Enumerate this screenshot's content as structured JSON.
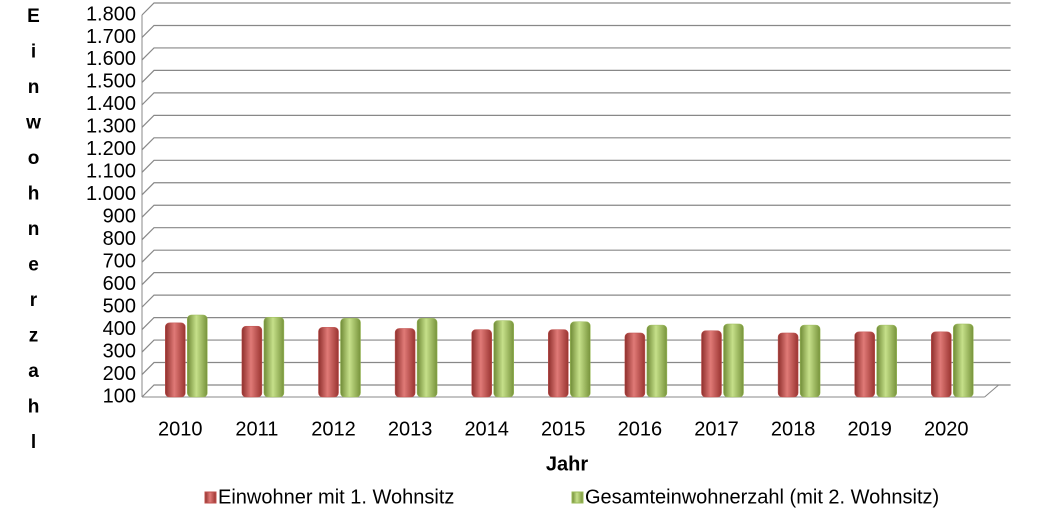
{
  "chart_data": {
    "type": "bar",
    "x_label": "Jahr",
    "y_label": "Einwohnerzahl",
    "categories": [
      "2010",
      "2011",
      "2012",
      "2013",
      "2014",
      "2015",
      "2016",
      "2017",
      "2018",
      "2019",
      "2020"
    ],
    "series": [
      {
        "name": "Einwohner mit 1. Wohnsitz",
        "color": "#c0504d",
        "values": [
          430,
          415,
          410,
          405,
          400,
          400,
          385,
          395,
          385,
          390,
          390
        ]
      },
      {
        "name": "Gesamteinwohnerzahl (mit 2. Wohnsitz)",
        "color": "#9bbb59",
        "values": [
          465,
          455,
          450,
          450,
          440,
          435,
          420,
          425,
          420,
          420,
          425
        ]
      }
    ],
    "ylim": [
      100,
      1800
    ],
    "yticks": [
      100,
      200,
      300,
      400,
      500,
      600,
      700,
      800,
      900,
      {
        "value": 1000,
        "label": "1.000"
      },
      {
        "value": 1100,
        "label": "1.100"
      },
      {
        "value": 1200,
        "label": "1.200"
      },
      {
        "value": 1300,
        "label": "1.300"
      },
      {
        "value": 1400,
        "label": "1.400"
      },
      {
        "value": 1500,
        "label": "1.500"
      },
      {
        "value": 1600,
        "label": "1.600"
      },
      {
        "value": 1700,
        "label": "1.700"
      },
      {
        "value": 1800,
        "label": "1.800"
      }
    ],
    "grid": true,
    "legend": "bottom"
  }
}
